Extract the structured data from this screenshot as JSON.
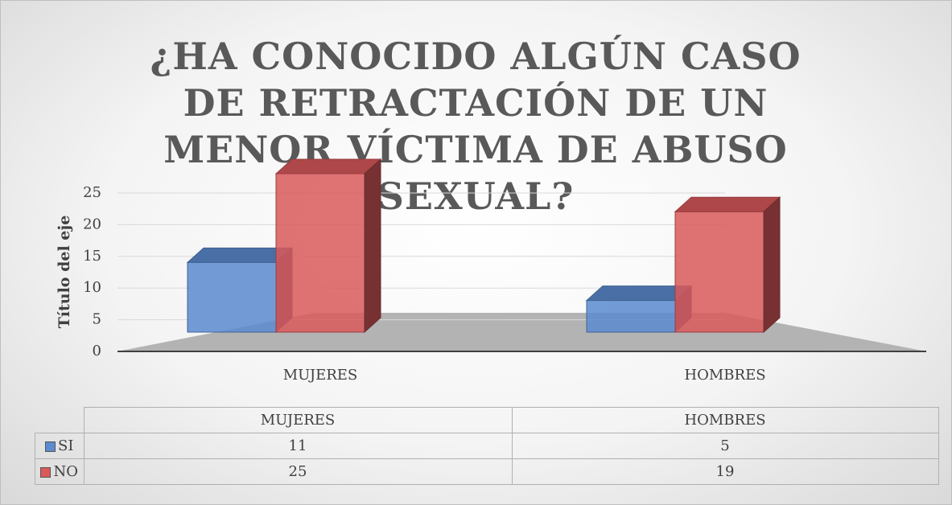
{
  "chart_data": {
    "type": "bar3d",
    "title": "¿HA CONOCIDO ALGÚN CASO DE RETRACTACIÓN DE UN MENOR VÍCTIMA DE ABUSO SEXUAL?",
    "ylabel": "Título del eje",
    "categories": [
      "MUJERES",
      "HOMBRES"
    ],
    "series": [
      {
        "name": "SI",
        "color": "#5b8bd0",
        "values": [
          11,
          5
        ]
      },
      {
        "name": "NO",
        "color": "#d9595b",
        "values": [
          25,
          19
        ]
      }
    ],
    "ylim": [
      0,
      25
    ],
    "yticks": [
      0,
      5,
      10,
      15,
      20,
      25
    ],
    "grid": true
  }
}
